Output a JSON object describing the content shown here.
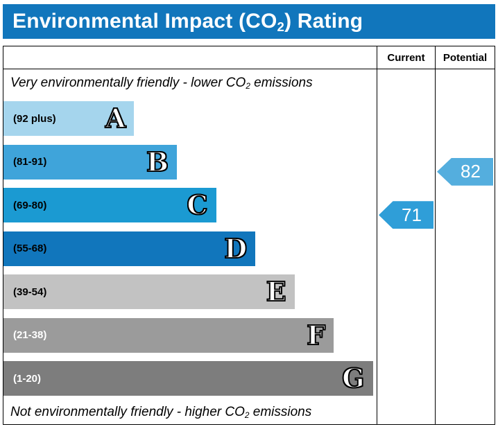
{
  "title": {
    "prefix": "Environmental Impact (CO",
    "sub": "2",
    "suffix": ") Rating"
  },
  "columns": {
    "current": "Current",
    "potential": "Potential"
  },
  "captions": {
    "top": {
      "prefix": "Very environmentally friendly - lower CO",
      "sub": "2",
      "suffix": " emissions"
    },
    "bottom": {
      "prefix": "Not environmentally friendly - higher CO",
      "sub": "2",
      "suffix": " emissions"
    }
  },
  "bands": [
    {
      "letter": "A",
      "range": "(92 plus)",
      "color": "#a5d5ed",
      "width_pct": 35,
      "label_color": "#000000"
    },
    {
      "letter": "B",
      "range": "(81-91)",
      "color": "#3fa4da",
      "width_pct": 46.5,
      "label_color": "#000000"
    },
    {
      "letter": "C",
      "range": "(69-80)",
      "color": "#1b9ad2",
      "width_pct": 57,
      "label_color": "#000000"
    },
    {
      "letter": "D",
      "range": "(55-68)",
      "color": "#1176bc",
      "width_pct": 67.5,
      "label_color": "#000000"
    },
    {
      "letter": "E",
      "range": "(39-54)",
      "color": "#c2c2c2",
      "width_pct": 78,
      "label_color": "#000000"
    },
    {
      "letter": "F",
      "range": "(21-38)",
      "color": "#9b9b9b",
      "width_pct": 88.5,
      "label_color": "#ffffff"
    },
    {
      "letter": "G",
      "range": "(1-20)",
      "color": "#7d7d7d",
      "width_pct": 99,
      "label_color": "#ffffff"
    }
  ],
  "ratings": {
    "current": {
      "value": "71",
      "band_index": 2,
      "color": "#2f9ed8"
    },
    "potential": {
      "value": "82",
      "band_index": 1,
      "color": "#54aede"
    }
  },
  "chart_data": {
    "type": "bar",
    "title": "Environmental Impact (CO2) Rating",
    "categories": [
      "A (92 plus)",
      "B (81-91)",
      "C (69-80)",
      "D (55-68)",
      "E (39-54)",
      "F (21-38)",
      "G (1-20)"
    ],
    "values": [
      35,
      46.5,
      57,
      67.5,
      78,
      88.5,
      99
    ],
    "value_meaning": "relative bar width percent of chart column",
    "annotations": [
      {
        "label": "Current",
        "value": 71,
        "band": "C"
      },
      {
        "label": "Potential",
        "value": 82,
        "band": "B"
      }
    ],
    "notes": [
      "Very environmentally friendly - lower CO2 emissions",
      "Not environmentally friendly - higher CO2 emissions"
    ],
    "legend_position": "none",
    "grid": false
  }
}
